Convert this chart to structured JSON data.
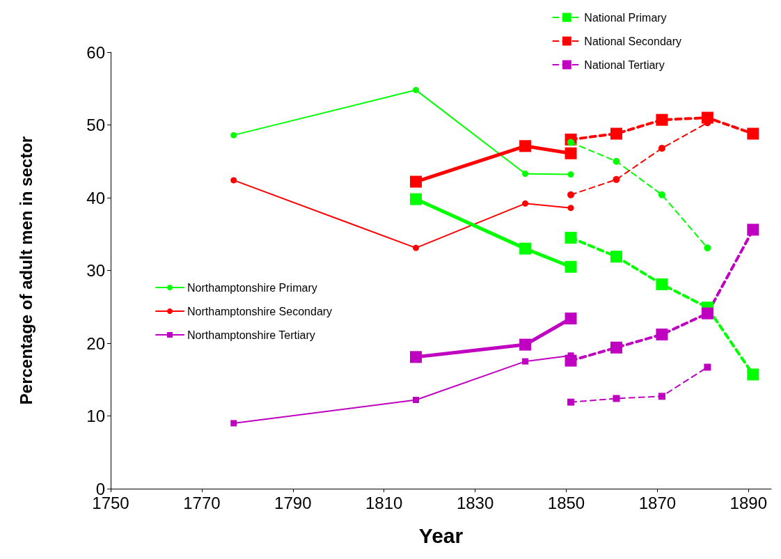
{
  "chart_data": {
    "type": "line",
    "xlabel": "Year",
    "ylabel": "Percentage of adult men in sector",
    "xlim": [
      1750,
      1895
    ],
    "xticks": [
      1750,
      1770,
      1790,
      1810,
      1830,
      1850,
      1870,
      1890
    ],
    "ylim": [
      0,
      60
    ],
    "yticks": [
      0,
      10,
      20,
      30,
      40,
      50,
      60
    ],
    "grid": false,
    "legend": "top right",
    "series": [
      {
        "name": "Northamptonshire Primary",
        "color": "#00ff00",
        "marker": "circle",
        "line_style": "solid",
        "x": [
          1777,
          1817,
          1841,
          1851
        ],
        "values": [
          48.6,
          54.8,
          43.3,
          43.2
        ]
      },
      {
        "name": "Northamptonshire Secondary",
        "color": "#ff0000",
        "marker": "circle",
        "line_style": "solid",
        "x": [
          1777,
          1817,
          1841,
          1851
        ],
        "values": [
          42.4,
          33.1,
          39.2,
          38.6
        ]
      },
      {
        "name": "Northamptonshire Tertiary",
        "color": "#c000c0",
        "marker": "square",
        "line_style": "solid",
        "x": [
          1777,
          1817,
          1841,
          1851
        ],
        "values": [
          9.0,
          12.2,
          17.5,
          18.3
        ]
      },
      {
        "color": "#00ff00",
        "marker": "square",
        "line_style": "solid",
        "x": [
          1817,
          1841,
          1851
        ],
        "values": [
          39.8,
          33.0,
          30.5
        ]
      },
      {
        "color": "#ff0000",
        "marker": "square",
        "line_style": "solid",
        "x": [
          1817,
          1841,
          1851
        ],
        "values": [
          42.2,
          47.1,
          46.1
        ]
      },
      {
        "color": "#c000c0",
        "marker": "square",
        "line_style": "solid",
        "x": [
          1817,
          1841,
          1851
        ],
        "values": [
          18.1,
          19.8,
          23.4
        ]
      },
      {
        "color": "#00ff00",
        "marker": "circle",
        "line_style": "dashed",
        "x": [
          1851,
          1861,
          1871,
          1881
        ],
        "values": [
          47.6,
          45.0,
          40.4,
          33.1
        ]
      },
      {
        "color": "#ff0000",
        "marker": "circle",
        "line_style": "dashed",
        "x": [
          1851,
          1861,
          1871,
          1881
        ],
        "values": [
          40.4,
          42.5,
          46.8,
          50.3
        ]
      },
      {
        "color": "#c000c0",
        "marker": "square",
        "line_style": "dashed",
        "x": [
          1851,
          1861,
          1871,
          1881
        ],
        "values": [
          11.9,
          12.4,
          12.7,
          16.7
        ]
      },
      {
        "name": "National Primary",
        "color": "#00ff00",
        "marker": "square",
        "line_style": "dashed",
        "x": [
          1851,
          1861,
          1871,
          1881,
          1891
        ],
        "values": [
          34.5,
          31.9,
          28.1,
          24.9,
          15.7
        ]
      },
      {
        "name": "National Secondary",
        "color": "#ff0000",
        "marker": "square",
        "line_style": "dashed",
        "x": [
          1851,
          1861,
          1871,
          1881,
          1891
        ],
        "values": [
          48.0,
          48.8,
          50.7,
          51.0,
          48.8
        ]
      },
      {
        "name": "National Tertiary",
        "color": "#c000c0",
        "marker": "square",
        "line_style": "dashed",
        "x": [
          1851,
          1861,
          1871,
          1881,
          1891
        ],
        "values": [
          17.6,
          19.4,
          21.2,
          24.1,
          35.6
        ]
      }
    ]
  }
}
